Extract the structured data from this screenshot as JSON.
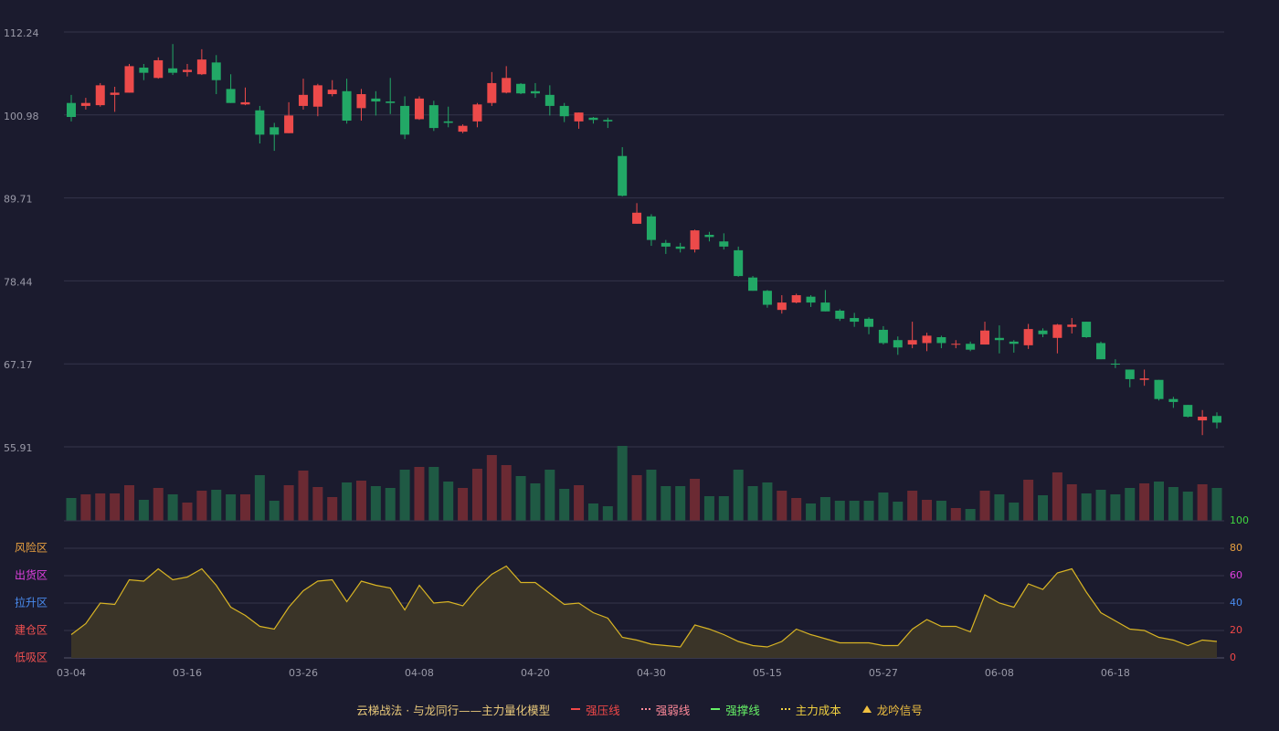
{
  "chart_data": [
    {
      "type": "candlestick",
      "up_color": "#ec4a4a",
      "down_color": "#22a866",
      "grid": true,
      "ylim": [
        55.91,
        112.24
      ],
      "yticks": [
        112.24,
        100.98,
        89.71,
        78.44,
        67.17,
        55.91
      ],
      "open": [
        102.6,
        102.2,
        102.3,
        103.7,
        104.0,
        107.4,
        106.0,
        107.3,
        106.8,
        106.5,
        108.1,
        104.5,
        102.4,
        101.6,
        99.3,
        98.5,
        102.2,
        102.1,
        103.8,
        104.2,
        101.9,
        103.2,
        102.8,
        102.2,
        100.4,
        102.3,
        100.1,
        98.7,
        100.1,
        102.6,
        104.0,
        105.2,
        104.2,
        103.7,
        102.2,
        100.1,
        100.6,
        100.3,
        95.4,
        86.2,
        87.2,
        83.6,
        83.1,
        82.7,
        84.7,
        83.8,
        82.6,
        78.9,
        77.1,
        74.5,
        75.5,
        76.3,
        75.5,
        74.4,
        73.4,
        73.3,
        71.8,
        70.4,
        69.8,
        70.0,
        70.8,
        69.8,
        69.9,
        69.8,
        70.7,
        70.2,
        69.7,
        71.7,
        70.7,
        72.2,
        72.9,
        70.0,
        67.2,
        66.4,
        65.0,
        65.0,
        62.4,
        61.6,
        59.5,
        60.1
      ],
      "close": [
        100.7,
        102.6,
        105.0,
        104.0,
        107.6,
        106.7,
        108.4,
        106.7,
        107.1,
        108.5,
        105.7,
        102.6,
        102.7,
        98.3,
        98.3,
        100.9,
        103.7,
        105.0,
        104.4,
        100.2,
        103.8,
        102.8,
        102.6,
        98.3,
        103.2,
        99.2,
        99.9,
        99.5,
        102.4,
        105.3,
        106.0,
        103.9,
        103.9,
        102.2,
        100.8,
        101.3,
        100.3,
        100.1,
        90.0,
        87.7,
        84.0,
        83.1,
        82.8,
        85.3,
        84.4,
        83.1,
        79.1,
        77.1,
        75.2,
        75.5,
        76.5,
        75.5,
        74.3,
        73.3,
        72.9,
        72.2,
        70.0,
        69.4,
        70.4,
        71.0,
        70.0,
        69.9,
        69.1,
        71.7,
        70.4,
        69.9,
        71.9,
        71.2,
        72.5,
        72.5,
        70.8,
        67.8,
        67.1,
        65.1,
        65.2,
        62.4,
        62.0,
        60.0,
        60.0,
        59.2
      ],
      "high": [
        103.7,
        103.3,
        105.3,
        104.8,
        107.9,
        107.9,
        108.8,
        110.6,
        107.9,
        109.9,
        109.1,
        106.5,
        104.7,
        102.2,
        99.9,
        102.7,
        105.9,
        105.2,
        105.7,
        105.9,
        104.5,
        104.2,
        106.0,
        103.5,
        103.5,
        102.9,
        102.1,
        99.7,
        102.6,
        106.8,
        107.6,
        105.3,
        105.3,
        105.0,
        102.6,
        101.3,
        100.7,
        100.6,
        96.6,
        89.0,
        87.5,
        84.0,
        83.6,
        85.4,
        85.1,
        84.9,
        83.1,
        79.1,
        77.2,
        76.5,
        76.7,
        76.5,
        77.2,
        74.6,
        74.1,
        73.5,
        72.3,
        70.9,
        72.9,
        71.4,
        71.0,
        70.4,
        70.2,
        72.9,
        72.4,
        70.4,
        72.6,
        72.0,
        72.6,
        73.4,
        72.9,
        70.2,
        67.8,
        66.4,
        66.4,
        65.0,
        62.7,
        61.6,
        60.9,
        60.6
      ],
      "low": [
        100.1,
        101.7,
        102.1,
        101.4,
        104.0,
        105.7,
        105.9,
        106.4,
        106.2,
        106.4,
        103.8,
        102.6,
        102.3,
        97.1,
        96.1,
        98.5,
        101.7,
        100.8,
        103.5,
        99.8,
        100.2,
        100.9,
        101.1,
        97.7,
        100.3,
        98.8,
        99.3,
        98.5,
        99.3,
        102.2,
        103.9,
        103.8,
        103.3,
        100.9,
        100.0,
        99.1,
        99.8,
        99.2,
        89.9,
        86.2,
        83.2,
        82.1,
        82.3,
        82.3,
        83.8,
        82.7,
        79.0,
        77.1,
        74.8,
        74.0,
        75.4,
        74.9,
        74.3,
        73.0,
        72.2,
        71.2,
        69.8,
        68.4,
        69.3,
        68.9,
        69.3,
        69.3,
        68.9,
        69.8,
        68.6,
        68.7,
        69.2,
        70.8,
        68.6,
        71.3,
        70.7,
        67.8,
        66.6,
        64.0,
        64.2,
        62.2,
        61.2,
        59.9,
        57.5,
        58.4
      ]
    },
    {
      "type": "bar",
      "up_color": "#6b2a33",
      "down_color": "#1f5a44",
      "values": [
        25,
        29,
        30,
        30,
        39,
        23,
        36,
        29,
        20,
        33,
        34,
        29,
        29,
        50,
        22,
        39,
        55,
        37,
        26,
        42,
        44,
        38,
        36,
        56,
        59,
        59,
        43,
        36,
        57,
        72,
        61,
        49,
        41,
        56,
        35,
        39,
        19,
        16,
        82,
        50,
        56,
        38,
        38,
        46,
        27,
        27,
        56,
        38,
        42,
        33,
        25,
        19,
        26,
        22,
        22,
        22,
        31,
        21,
        33,
        23,
        22,
        14,
        13,
        33,
        29,
        20,
        45,
        28,
        53,
        40,
        30,
        34,
        29,
        36,
        41,
        43,
        37,
        32,
        40,
        36
      ]
    },
    {
      "type": "area",
      "color": "#d8b424",
      "fill": "#3a3428",
      "grid": true,
      "ylim": [
        0,
        100
      ],
      "yticks": [
        0,
        20,
        40,
        60,
        80,
        100
      ],
      "ytick_colors": [
        "#f04848",
        "#f04848",
        "#4a8cf0",
        "#e040e0",
        "#e8a040",
        "#40d840"
      ],
      "zones": [
        {
          "value": 80,
          "label": "风险区",
          "color": "#e8a040"
        },
        {
          "value": 60,
          "label": "出货区",
          "color": "#e040e0"
        },
        {
          "value": 40,
          "label": "拉升区",
          "color": "#4a8cf0"
        },
        {
          "value": 20,
          "label": "建仓区",
          "color": "#f05050"
        },
        {
          "value": 0,
          "label": "低吸区",
          "color": "#f05050"
        }
      ],
      "values": [
        17,
        25,
        40,
        39,
        57,
        56,
        65,
        57,
        59,
        65,
        53,
        37,
        31,
        23,
        21,
        37,
        49,
        56,
        57,
        41,
        56,
        53,
        51,
        35,
        53,
        40,
        41,
        38,
        51,
        61,
        67,
        55,
        55,
        47,
        39,
        40,
        33,
        29,
        15,
        13,
        10,
        9,
        8,
        24,
        21,
        17,
        12,
        9,
        8,
        12,
        21,
        17,
        14,
        11,
        11,
        11,
        9,
        9,
        21,
        28,
        23,
        23,
        19,
        46,
        40,
        37,
        54,
        50,
        62,
        65,
        48,
        33,
        27,
        21,
        20,
        15,
        13,
        9,
        13,
        12
      ],
      "categories": [
        "03-04",
        null,
        null,
        null,
        null,
        null,
        null,
        null,
        "03-16",
        null,
        null,
        null,
        null,
        null,
        null,
        null,
        "03-26",
        null,
        null,
        null,
        null,
        null,
        null,
        null,
        "04-08",
        null,
        null,
        null,
        null,
        null,
        null,
        null,
        "04-20",
        null,
        null,
        null,
        null,
        null,
        null,
        null,
        "04-30",
        null,
        null,
        null,
        null,
        null,
        null,
        null,
        "05-15",
        null,
        null,
        null,
        null,
        null,
        null,
        null,
        "05-27",
        null,
        null,
        null,
        null,
        null,
        null,
        null,
        "06-08",
        null,
        null,
        null,
        null,
        null,
        null,
        null,
        "06-18",
        null,
        null,
        null,
        null,
        null,
        null,
        null
      ]
    }
  ],
  "legend": {
    "title": "云梯战法 · 与龙同行——主力量化模型",
    "title_color": "#e8c87a",
    "items": [
      {
        "name": "强压线",
        "color": "#f04848",
        "style": "solid"
      },
      {
        "name": "强弱线",
        "color": "#ff8a9a",
        "style": "dashed"
      },
      {
        "name": "强撑线",
        "color": "#66f066",
        "style": "solid"
      },
      {
        "name": "主力成本",
        "color": "#f0d040",
        "style": "dashed"
      },
      {
        "name": "龙吟信号",
        "color": "#f0c040",
        "style": "triangle"
      }
    ]
  }
}
